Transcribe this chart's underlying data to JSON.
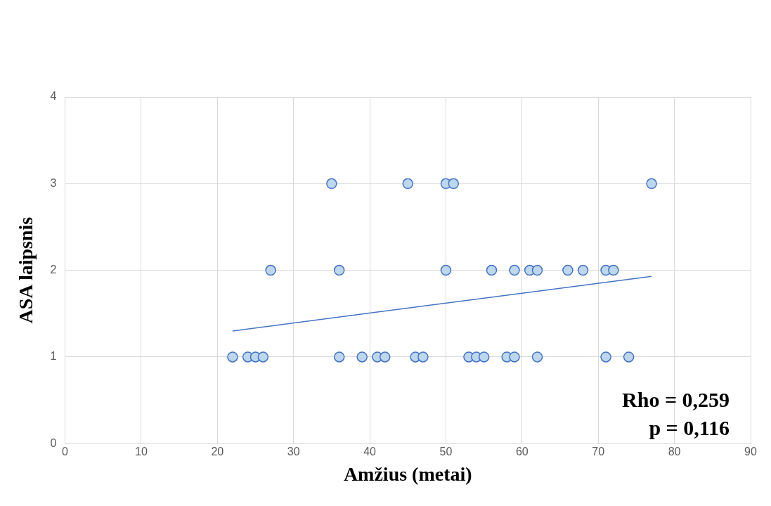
{
  "chart_data": {
    "type": "scatter",
    "xlabel": "Amžius (metai)",
    "ylabel": "ASA laipsnis",
    "xlim": [
      0,
      90
    ],
    "xticks": [
      0,
      10,
      20,
      30,
      40,
      50,
      60,
      70,
      80,
      90
    ],
    "ylim": [
      0,
      4
    ],
    "yticks": [
      0,
      1,
      2,
      3,
      4
    ],
    "grid": true,
    "legend": false,
    "marker": "circle",
    "series": [
      {
        "type": "scatter",
        "color": "#4472c4",
        "x": [
          22,
          24,
          25,
          26,
          36,
          39,
          41,
          42,
          46,
          47,
          53,
          54,
          55,
          58,
          59,
          62,
          71,
          74,
          27,
          36,
          50,
          56,
          59,
          61,
          62,
          66,
          68,
          71,
          72,
          35,
          45,
          50,
          51,
          77
        ],
        "values": [
          1,
          1,
          1,
          1,
          1,
          1,
          1,
          1,
          1,
          1,
          1,
          1,
          1,
          1,
          1,
          1,
          1,
          1,
          2,
          2,
          2,
          2,
          2,
          2,
          2,
          2,
          2,
          2,
          2,
          3,
          3,
          3,
          3,
          3
        ]
      },
      {
        "type": "line",
        "color": "#4472c4",
        "marker": "none",
        "x": [
          22,
          77
        ],
        "values": [
          1.3,
          1.93
        ]
      }
    ],
    "annotations": [
      "Rho = 0,259",
      "p = 0,116"
    ]
  }
}
